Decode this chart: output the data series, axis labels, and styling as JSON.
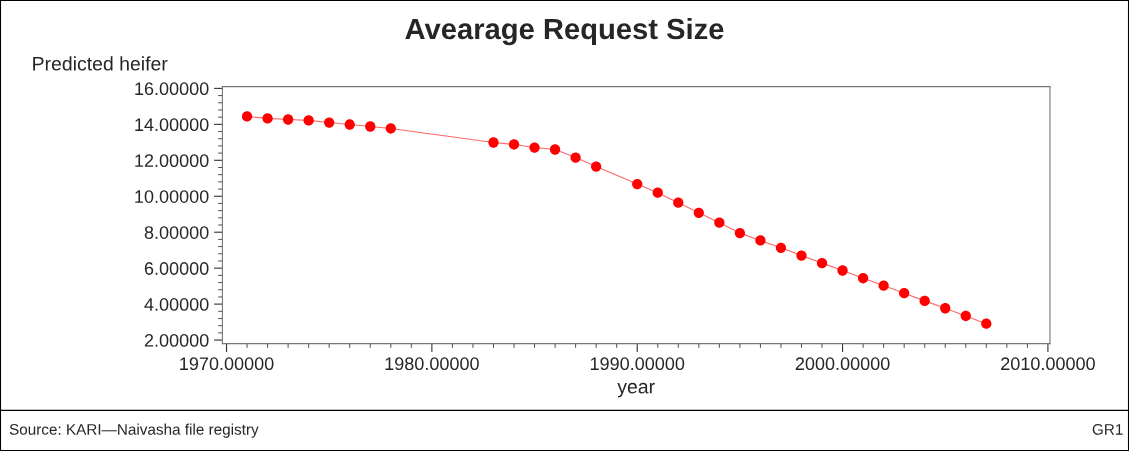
{
  "chart_data": {
    "type": "line",
    "title": "Avearage Request Size",
    "xlabel": "year",
    "ylabel": "Predicted heifer",
    "annotations": [
      "Source: KARI—Naivasha file registry",
      "GR1"
    ],
    "x": [
      1971,
      1972,
      1973,
      1974,
      1975,
      1976,
      1977,
      1978,
      1983,
      1984,
      1985,
      1986,
      1987,
      1988,
      1990,
      1991,
      1992,
      1993,
      1994,
      1995,
      1996,
      1997,
      1998,
      1999,
      2000,
      2001,
      2002,
      2003,
      2004,
      2005,
      2006,
      2007
    ],
    "series": [
      {
        "color": "#ff0000",
        "values": [
          14.44,
          14.33,
          14.27,
          14.22,
          14.1,
          13.99,
          13.88,
          13.77,
          12.99,
          12.88,
          12.71,
          12.6,
          12.15,
          11.65,
          10.68,
          10.2,
          9.64,
          9.08,
          8.53,
          7.95,
          7.54,
          7.13,
          6.7,
          6.28,
          5.87,
          5.44,
          5.03,
          4.61,
          4.18,
          3.77,
          3.34,
          2.91
        ]
      }
    ],
    "xlim": [
      1969.8,
      2010.1
    ],
    "ylim": [
      1.8,
      16.1
    ],
    "xticks": [
      {
        "value": 1970,
        "label": "1970.00000"
      },
      {
        "value": 1980,
        "label": "1980.00000"
      },
      {
        "value": 1990,
        "label": "1990.00000"
      },
      {
        "value": 2000,
        "label": "2000.00000"
      },
      {
        "value": 2010,
        "label": "2010.00000"
      }
    ],
    "yticks": [
      {
        "value": 2,
        "label": "2.00000"
      },
      {
        "value": 4,
        "label": "4.00000"
      },
      {
        "value": 6,
        "label": "6.00000"
      },
      {
        "value": 8,
        "label": "8.00000"
      },
      {
        "value": 10,
        "label": "10.00000"
      },
      {
        "value": 12,
        "label": "12.00000"
      },
      {
        "value": 14,
        "label": "14.00000"
      },
      {
        "value": 16,
        "label": "16.00000"
      }
    ],
    "marker": "circle",
    "line_style": "solid",
    "grid": false,
    "legend": false
  }
}
